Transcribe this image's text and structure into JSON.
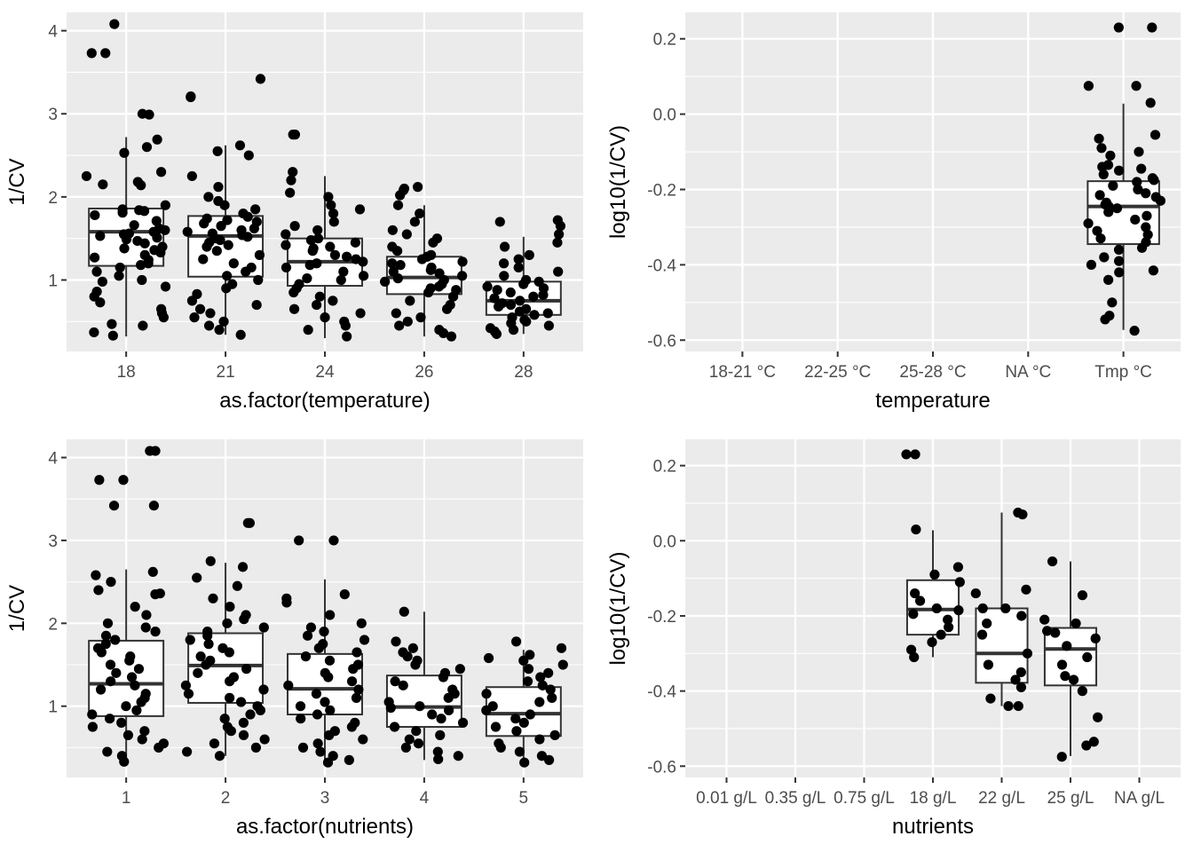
{
  "chart_data": [
    {
      "type": "boxplot",
      "xlabel": "as.factor(temperature)",
      "ylabel": "1/CV",
      "categories": [
        "18",
        "21",
        "24",
        "26",
        "28"
      ],
      "yticks": [
        1,
        2,
        3,
        4
      ],
      "ylim": [
        0.14,
        4.22
      ],
      "boxes": [
        {
          "category": "18",
          "q1": 1.17,
          "median": 1.58,
          "q3": 1.86,
          "whisker_low": 0.32,
          "whisker_high": 2.72
        },
        {
          "category": "21",
          "q1": 1.04,
          "median": 1.53,
          "q3": 1.77,
          "whisker_low": 0.34,
          "whisker_high": 2.62
        },
        {
          "category": "24",
          "q1": 0.93,
          "median": 1.22,
          "q3": 1.5,
          "whisker_low": 0.3,
          "whisker_high": 2.25
        },
        {
          "category": "26",
          "q1": 0.83,
          "median": 1.03,
          "q3": 1.28,
          "whisker_low": 0.32,
          "whisker_high": 1.9
        },
        {
          "category": "28",
          "q1": 0.58,
          "median": 0.75,
          "q3": 0.98,
          "whisker_low": 0.35,
          "whisker_high": 1.52
        }
      ],
      "points": {
        "18": [
          4.08,
          3.73,
          3.73,
          3.0,
          2.99,
          2.69,
          2.6,
          2.53,
          2.3,
          2.25,
          2.15,
          2.14,
          2.18,
          1.9,
          1.85,
          1.84,
          1.83,
          1.81,
          1.78,
          1.71,
          1.66,
          1.62,
          1.6,
          1.58,
          1.56,
          1.55,
          1.53,
          1.51,
          1.49,
          1.47,
          1.44,
          1.4,
          1.38,
          1.36,
          1.33,
          1.3,
          1.27,
          1.24,
          1.2,
          1.18,
          1.15,
          1.1,
          1.05,
          1.0,
          0.98,
          0.92,
          0.86,
          0.8,
          0.73,
          0.65,
          0.6,
          0.55,
          0.47,
          0.45,
          0.37,
          0.33
        ],
        "21": [
          3.42,
          3.21,
          3.2,
          2.62,
          2.55,
          2.5,
          2.25,
          2.12,
          2.0,
          1.95,
          1.9,
          1.85,
          1.8,
          1.76,
          1.74,
          1.72,
          1.7,
          1.68,
          1.65,
          1.62,
          1.6,
          1.58,
          1.56,
          1.54,
          1.52,
          1.5,
          1.48,
          1.45,
          1.42,
          1.4,
          1.35,
          1.3,
          1.25,
          1.2,
          1.15,
          1.1,
          1.05,
          1.0,
          0.95,
          0.9,
          0.83,
          0.75,
          0.7,
          0.65,
          0.6,
          0.55,
          0.5,
          0.45,
          0.4,
          0.34
        ],
        "24": [
          2.75,
          2.75,
          2.3,
          2.2,
          2.05,
          2.0,
          1.9,
          1.85,
          1.8,
          1.7,
          1.65,
          1.6,
          1.55,
          1.5,
          1.48,
          1.45,
          1.42,
          1.4,
          1.38,
          1.35,
          1.3,
          1.28,
          1.25,
          1.22,
          1.2,
          1.18,
          1.15,
          1.1,
          1.05,
          1.02,
          1.0,
          0.95,
          0.9,
          0.85,
          0.8,
          0.75,
          0.7,
          0.65,
          0.6,
          0.55,
          0.5,
          0.45,
          0.4,
          0.32
        ],
        "26": [
          2.12,
          2.1,
          2.08,
          2.02,
          1.9,
          1.8,
          1.7,
          1.6,
          1.55,
          1.5,
          1.45,
          1.4,
          1.35,
          1.3,
          1.28,
          1.25,
          1.22,
          1.2,
          1.18,
          1.15,
          1.12,
          1.1,
          1.08,
          1.05,
          1.02,
          1.0,
          0.98,
          0.95,
          0.92,
          0.9,
          0.88,
          0.85,
          0.8,
          0.75,
          0.7,
          0.65,
          0.6,
          0.55,
          0.5,
          0.45,
          0.4,
          0.36,
          0.32
        ],
        "28": [
          1.72,
          1.7,
          1.65,
          1.55,
          1.45,
          1.4,
          1.3,
          1.25,
          1.2,
          1.15,
          1.1,
          1.05,
          1.0,
          0.98,
          0.95,
          0.92,
          0.9,
          0.88,
          0.85,
          0.82,
          0.8,
          0.78,
          0.75,
          0.72,
          0.7,
          0.68,
          0.65,
          0.62,
          0.6,
          0.58,
          0.55,
          0.52,
          0.5,
          0.48,
          0.45,
          0.42,
          0.4,
          0.38,
          0.35
        ]
      }
    },
    {
      "type": "boxplot",
      "xlabel": "temperature",
      "ylabel": "log10(1/CV)",
      "categories": [
        "18-21 °C",
        "22-25 °C",
        "25-28 °C",
        "NA °C",
        "Tmp °C"
      ],
      "yticks": [
        -0.6,
        -0.4,
        -0.2,
        0.0,
        0.2
      ],
      "ylim": [
        -0.63,
        0.27
      ],
      "boxes": [
        {
          "category": "Tmp °C",
          "q1": -0.345,
          "median": -0.245,
          "q3": -0.178,
          "whisker_low": -0.573,
          "whisker_high": 0.028
        }
      ],
      "points": {
        "Tmp °C": [
          0.23,
          0.23,
          0.075,
          0.075,
          0.03,
          -0.055,
          -0.065,
          -0.09,
          -0.1,
          -0.11,
          -0.135,
          -0.14,
          -0.145,
          -0.15,
          -0.16,
          -0.17,
          -0.175,
          -0.18,
          -0.19,
          -0.2,
          -0.21,
          -0.215,
          -0.22,
          -0.23,
          -0.235,
          -0.24,
          -0.245,
          -0.25,
          -0.26,
          -0.27,
          -0.28,
          -0.29,
          -0.3,
          -0.31,
          -0.32,
          -0.33,
          -0.34,
          -0.355,
          -0.36,
          -0.38,
          -0.39,
          -0.4,
          -0.415,
          -0.42,
          -0.44,
          -0.5,
          -0.535,
          -0.545,
          -0.575
        ]
      }
    },
    {
      "type": "boxplot",
      "xlabel": "as.factor(nutrients)",
      "ylabel": "1/CV",
      "categories": [
        "1",
        "2",
        "3",
        "4",
        "5"
      ],
      "yticks": [
        1,
        2,
        3,
        4
      ],
      "ylim": [
        0.14,
        4.22
      ],
      "boxes": [
        {
          "category": "1",
          "q1": 0.88,
          "median": 1.27,
          "q3": 1.79,
          "whisker_low": 0.33,
          "whisker_high": 2.65
        },
        {
          "category": "2",
          "q1": 1.04,
          "median": 1.49,
          "q3": 1.88,
          "whisker_low": 0.4,
          "whisker_high": 2.73
        },
        {
          "category": "3",
          "q1": 0.9,
          "median": 1.21,
          "q3": 1.63,
          "whisker_low": 0.33,
          "whisker_high": 2.53
        },
        {
          "category": "4",
          "q1": 0.75,
          "median": 0.99,
          "q3": 1.37,
          "whisker_low": 0.35,
          "whisker_high": 2.14
        },
        {
          "category": "5",
          "q1": 0.64,
          "median": 0.91,
          "q3": 1.23,
          "whisker_low": 0.32,
          "whisker_high": 1.68
        }
      ],
      "points": {
        "1": [
          4.08,
          4.08,
          3.73,
          3.73,
          3.42,
          3.42,
          2.62,
          2.58,
          2.5,
          2.4,
          2.36,
          2.35,
          2.2,
          2.1,
          2.0,
          1.95,
          1.9,
          1.85,
          1.8,
          1.75,
          1.7,
          1.65,
          1.6,
          1.55,
          1.5,
          1.45,
          1.4,
          1.35,
          1.3,
          1.25,
          1.2,
          1.15,
          1.1,
          1.05,
          1.0,
          0.95,
          0.9,
          0.85,
          0.8,
          0.75,
          0.7,
          0.65,
          0.6,
          0.55,
          0.5,
          0.45,
          0.4,
          0.33
        ],
        "2": [
          3.21,
          3.21,
          2.75,
          2.68,
          2.55,
          2.45,
          2.3,
          2.2,
          2.1,
          2.05,
          2.0,
          1.95,
          1.9,
          1.85,
          1.8,
          1.75,
          1.7,
          1.65,
          1.6,
          1.55,
          1.5,
          1.45,
          1.4,
          1.35,
          1.3,
          1.25,
          1.2,
          1.15,
          1.1,
          1.05,
          1.0,
          0.95,
          0.9,
          0.85,
          0.8,
          0.75,
          0.7,
          0.65,
          0.6,
          0.55,
          0.5,
          0.45,
          0.4
        ],
        "3": [
          3.0,
          3.0,
          2.35,
          2.3,
          2.25,
          2.1,
          2.0,
          1.95,
          1.9,
          1.85,
          1.8,
          1.75,
          1.7,
          1.65,
          1.6,
          1.55,
          1.5,
          1.45,
          1.4,
          1.35,
          1.3,
          1.25,
          1.2,
          1.15,
          1.1,
          1.05,
          1.0,
          0.95,
          0.9,
          0.85,
          0.8,
          0.75,
          0.7,
          0.65,
          0.6,
          0.55,
          0.5,
          0.45,
          0.4,
          0.35,
          0.32
        ],
        "4": [
          2.14,
          1.78,
          1.7,
          1.65,
          1.6,
          1.55,
          1.5,
          1.45,
          1.4,
          1.35,
          1.3,
          1.25,
          1.2,
          1.15,
          1.1,
          1.05,
          1.0,
          0.98,
          0.95,
          0.9,
          0.85,
          0.8,
          0.75,
          0.7,
          0.65,
          0.6,
          0.55,
          0.5,
          0.45,
          0.4,
          0.36
        ],
        "5": [
          1.78,
          1.7,
          1.62,
          1.58,
          1.55,
          1.5,
          1.45,
          1.4,
          1.35,
          1.3,
          1.25,
          1.2,
          1.15,
          1.1,
          1.05,
          1.0,
          0.95,
          0.9,
          0.85,
          0.8,
          0.75,
          0.7,
          0.65,
          0.6,
          0.55,
          0.5,
          0.45,
          0.4,
          0.35,
          0.32
        ]
      }
    },
    {
      "type": "boxplot",
      "xlabel": "nutrients",
      "ylabel": "log10(1/CV)",
      "categories": [
        "0.01 g/L",
        "0.35 g/L",
        "0.75 g/L",
        "18 g/L",
        "22 g/L",
        "25 g/L",
        "NA g/L"
      ],
      "yticks": [
        -0.6,
        -0.4,
        -0.2,
        0.0,
        0.2
      ],
      "ylim": [
        -0.63,
        0.27
      ],
      "boxes": [
        {
          "category": "18 g/L",
          "q1": -0.25,
          "median": -0.183,
          "q3": -0.105,
          "whisker_low": -0.31,
          "whisker_high": 0.028
        },
        {
          "category": "22 g/L",
          "q1": -0.378,
          "median": -0.3,
          "q3": -0.18,
          "whisker_low": -0.44,
          "whisker_high": 0.075
        },
        {
          "category": "25 g/L",
          "q1": -0.385,
          "median": -0.288,
          "q3": -0.232,
          "whisker_low": -0.573,
          "whisker_high": -0.055
        }
      ],
      "points": {
        "18 g/L": [
          0.23,
          0.23,
          0.03,
          -0.07,
          -0.09,
          -0.11,
          -0.14,
          -0.16,
          -0.18,
          -0.185,
          -0.195,
          -0.21,
          -0.23,
          -0.25,
          -0.27,
          -0.29,
          -0.31
        ],
        "22 g/L": [
          0.075,
          0.07,
          -0.13,
          -0.14,
          -0.18,
          -0.18,
          -0.2,
          -0.22,
          -0.25,
          -0.3,
          -0.33,
          -0.35,
          -0.37,
          -0.39,
          -0.42,
          -0.44,
          -0.44
        ],
        "25 g/L": [
          -0.055,
          -0.145,
          -0.21,
          -0.22,
          -0.24,
          -0.245,
          -0.26,
          -0.28,
          -0.31,
          -0.33,
          -0.36,
          -0.37,
          -0.4,
          -0.47,
          -0.535,
          -0.545,
          -0.575
        ]
      }
    }
  ]
}
